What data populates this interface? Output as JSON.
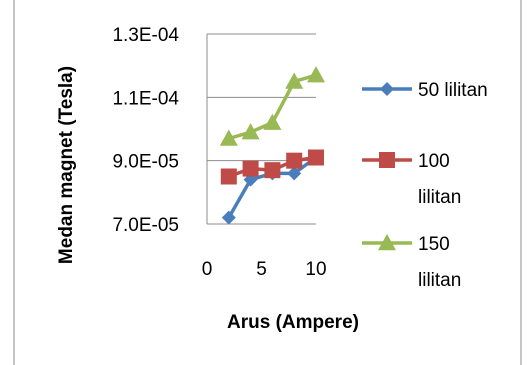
{
  "chart_data": {
    "type": "line",
    "title": "",
    "xlabel": "Arus (Ampere)",
    "ylabel": "Medan magnet (Tesla)",
    "xlim": [
      0,
      10
    ],
    "ylim": [
      7e-05,
      0.00013
    ],
    "xticks": [
      0,
      5,
      10
    ],
    "xtick_labels": [
      "0",
      "5",
      "10"
    ],
    "yticks": [
      7e-05,
      9e-05,
      0.00011,
      0.00013
    ],
    "ytick_labels": [
      "7.0E-05",
      "9.0E-05",
      "1.1E-04",
      "1.3E-04"
    ],
    "grid": "horizontal",
    "legend_position": "right",
    "series": [
      {
        "name": "50 lilitan",
        "legend_lines": [
          "50 lilitan"
        ],
        "color": "#4a7ebb",
        "marker": "diamond",
        "x": [
          2,
          4,
          6,
          8,
          10
        ],
        "y": [
          7.2e-05,
          8.4e-05,
          8.6e-05,
          8.6e-05,
          9.1e-05
        ]
      },
      {
        "name": "100 lilitan",
        "legend_lines": [
          "100",
          "lilitan"
        ],
        "color": "#be4b48",
        "marker": "square",
        "x": [
          2,
          4,
          6,
          8,
          10
        ],
        "y": [
          8.5e-05,
          8.75e-05,
          8.7e-05,
          9e-05,
          9.1e-05
        ]
      },
      {
        "name": "150 lilitan",
        "legend_lines": [
          "150",
          "lilitan"
        ],
        "color": "#98b954",
        "marker": "triangle",
        "x": [
          2,
          4,
          6,
          8,
          10
        ],
        "y": [
          9.7e-05,
          9.9e-05,
          0.000102,
          0.000115,
          0.000117
        ]
      }
    ]
  }
}
